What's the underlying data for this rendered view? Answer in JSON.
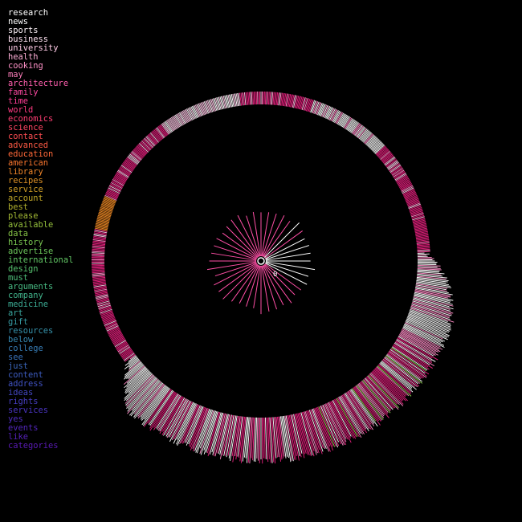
{
  "keywords": [
    {
      "label": "research",
      "color": "#ffffff"
    },
    {
      "label": "news",
      "color": "#ffffff"
    },
    {
      "label": "sports",
      "color": "#fff6fb"
    },
    {
      "label": "business",
      "color": "#ffe3f2"
    },
    {
      "label": "university",
      "color": "#ffcbe6"
    },
    {
      "label": "health",
      "color": "#ffafd7"
    },
    {
      "label": "cooking",
      "color": "#ff92c8"
    },
    {
      "label": "may",
      "color": "#ff7ebb"
    },
    {
      "label": "architecture",
      "color": "#ff5fae"
    },
    {
      "label": "family",
      "color": "#ff4aa3"
    },
    {
      "label": "time",
      "color": "#ff3d96"
    },
    {
      "label": "world",
      "color": "#ff3a83"
    },
    {
      "label": "economics",
      "color": "#ff3d72"
    },
    {
      "label": "science",
      "color": "#ff4462"
    },
    {
      "label": "contact",
      "color": "#ff4d52"
    },
    {
      "label": "advanced",
      "color": "#ff5a44"
    },
    {
      "label": "education",
      "color": "#ff6838"
    },
    {
      "label": "american",
      "color": "#f9762e"
    },
    {
      "label": "library",
      "color": "#ee8529"
    },
    {
      "label": "recipes",
      "color": "#e09226"
    },
    {
      "label": "service",
      "color": "#d19e26"
    },
    {
      "label": "account",
      "color": "#c2a828"
    },
    {
      "label": "best",
      "color": "#b2b12d"
    },
    {
      "label": "please",
      "color": "#a3b934"
    },
    {
      "label": "available",
      "color": "#94bf3c"
    },
    {
      "label": "data",
      "color": "#86c346"
    },
    {
      "label": "history",
      "color": "#78c550"
    },
    {
      "label": "advertise",
      "color": "#6cc65a"
    },
    {
      "label": "international",
      "color": "#61c564"
    },
    {
      "label": "design",
      "color": "#57c36f"
    },
    {
      "label": "must",
      "color": "#4ebf79"
    },
    {
      "label": "arguments",
      "color": "#47ba83"
    },
    {
      "label": "company",
      "color": "#41b48c"
    },
    {
      "label": "medicine",
      "color": "#3cad95"
    },
    {
      "label": "art",
      "color": "#39a59d"
    },
    {
      "label": "gift",
      "color": "#379ca4"
    },
    {
      "label": "resources",
      "color": "#3692ab"
    },
    {
      "label": "below",
      "color": "#3688b1"
    },
    {
      "label": "college",
      "color": "#377db6"
    },
    {
      "label": "see",
      "color": "#3972ba"
    },
    {
      "label": "just",
      "color": "#3b67bd"
    },
    {
      "label": "content",
      "color": "#3d5cc0"
    },
    {
      "label": "address",
      "color": "#4051c1"
    },
    {
      "label": "ideas",
      "color": "#4347c2"
    },
    {
      "label": "rights",
      "color": "#473ec2"
    },
    {
      "label": "services",
      "color": "#4a35c1"
    },
    {
      "label": "yes",
      "color": "#4e2dbf"
    },
    {
      "label": "events",
      "color": "#5226bc"
    },
    {
      "label": "like",
      "color": "#5520b8"
    },
    {
      "label": "categories",
      "color": "#591ab4"
    }
  ],
  "hub_label": "0",
  "colors": {
    "background": "#000000",
    "ring_primary": "#e8207f",
    "ring_light": "#ff8cc6",
    "ring_pale": "#ffc8e6",
    "ring_white": "#ffffff",
    "ring_orange": "#f08a24",
    "ring_green": "#8fd14f",
    "spoke_pink": "#ff4fa6",
    "spoke_white": "#ffffff"
  }
}
